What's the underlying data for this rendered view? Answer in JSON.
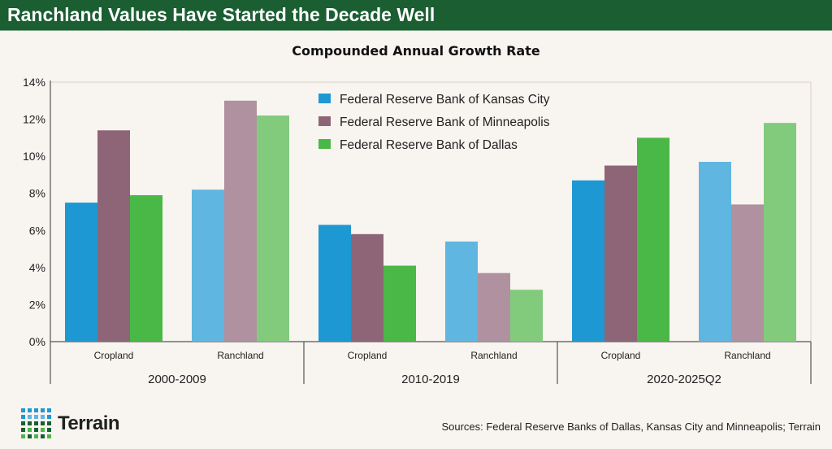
{
  "header": {
    "title": "Ranchland Values Have Started the Decade Well"
  },
  "chart_data": {
    "type": "bar",
    "title": "Compounded Annual Growth Rate",
    "groups": [
      "2000-2009",
      "2010-2019",
      "2020-2025Q2"
    ],
    "categories": [
      "Cropland",
      "Ranchland",
      "Cropland",
      "Ranchland",
      "Cropland",
      "Ranchland"
    ],
    "series": [
      {
        "name": "Federal Reserve Bank of Kansas City",
        "values": [
          7.5,
          8.2,
          6.3,
          5.4,
          8.7,
          9.7
        ],
        "color": "#1e98d3",
        "light_color": "#5fb6e0"
      },
      {
        "name": "Federal Reserve Bank of Minneapolis",
        "values": [
          11.4,
          13.0,
          5.8,
          3.7,
          9.5,
          7.4
        ],
        "color": "#8e6577",
        "light_color": "#b0919f"
      },
      {
        "name": "Federal Reserve Bank of Dallas",
        "values": [
          7.9,
          12.2,
          4.1,
          2.8,
          11.0,
          11.8
        ],
        "color": "#4ab846",
        "light_color": "#82cb7d"
      }
    ],
    "yticks": [
      "0%",
      "2%",
      "4%",
      "6%",
      "8%",
      "10%",
      "12%",
      "14%"
    ],
    "ylim": [
      0,
      14
    ],
    "grid": false,
    "legend": "top-center"
  },
  "footer": {
    "logo": "Terrain",
    "source": "Sources: Federal Reserve Banks of Dallas, Kansas City and Minneapolis; Terrain"
  }
}
